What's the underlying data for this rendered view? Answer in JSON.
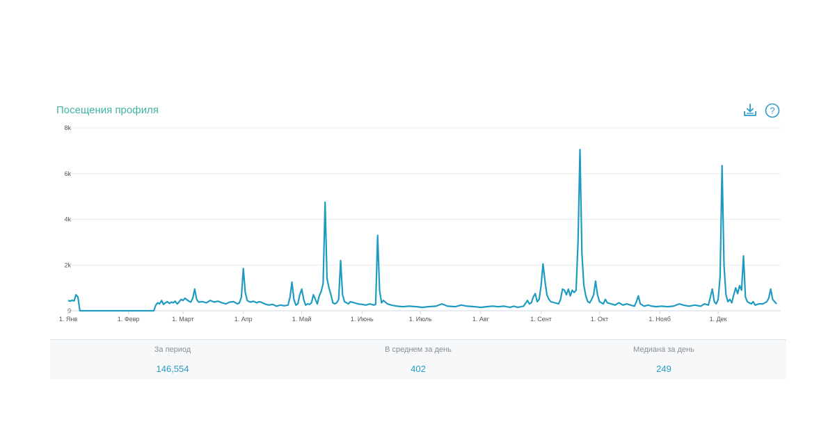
{
  "title": "Посещения профиля",
  "toolbar": {
    "download_icon": "download-icon",
    "help_icon": "help-icon"
  },
  "colors": {
    "title": "#3fb6a2",
    "line": "#1f9bc2",
    "stat_value": "#2a9bc4",
    "grid": "#e6e6e6"
  },
  "chart_data": {
    "type": "line",
    "title": "Посещения профиля",
    "xlabel": "",
    "ylabel": "",
    "ylim": [
      0,
      8000
    ],
    "y_ticks": [
      0,
      2000,
      4000,
      6000,
      8000
    ],
    "y_tick_labels": [
      "0",
      "2k",
      "4k",
      "6k",
      "8k"
    ],
    "x_tick_labels": [
      "1. Янв",
      "1. Февр",
      "1. Март",
      "1. Апр",
      "1. Май",
      "1. Июнь",
      "1. Июль",
      "1. Авг",
      "1. Сент",
      "1. Окт",
      "1. Нояб",
      "1. Дек"
    ],
    "x_tick_days": [
      1,
      32,
      60,
      91,
      121,
      152,
      182,
      213,
      244,
      274,
      305,
      335
    ],
    "grid": true,
    "legend": "none",
    "series": [
      {
        "points": [
          [
            1,
            450
          ],
          [
            2,
            420
          ],
          [
            3,
            460
          ],
          [
            4,
            430
          ],
          [
            5,
            700
          ],
          [
            6,
            600
          ],
          [
            7,
            0
          ],
          [
            8,
            0
          ],
          [
            20,
            0
          ],
          [
            40,
            0
          ],
          [
            45,
            0
          ],
          [
            46,
            250
          ],
          [
            47,
            350
          ],
          [
            48,
            300
          ],
          [
            49,
            450
          ],
          [
            50,
            280
          ],
          [
            51,
            350
          ],
          [
            52,
            400
          ],
          [
            53,
            320
          ],
          [
            54,
            380
          ],
          [
            55,
            350
          ],
          [
            56,
            420
          ],
          [
            57,
            300
          ],
          [
            58,
            380
          ],
          [
            59,
            500
          ],
          [
            60,
            450
          ],
          [
            61,
            550
          ],
          [
            62,
            480
          ],
          [
            63,
            420
          ],
          [
            64,
            380
          ],
          [
            65,
            550
          ],
          [
            66,
            950
          ],
          [
            67,
            500
          ],
          [
            68,
            380
          ],
          [
            70,
            400
          ],
          [
            72,
            350
          ],
          [
            74,
            450
          ],
          [
            76,
            380
          ],
          [
            78,
            420
          ],
          [
            80,
            350
          ],
          [
            82,
            300
          ],
          [
            84,
            380
          ],
          [
            86,
            400
          ],
          [
            88,
            300
          ],
          [
            89,
            350
          ],
          [
            90,
            600
          ],
          [
            91,
            1850
          ],
          [
            92,
            800
          ],
          [
            93,
            450
          ],
          [
            94,
            400
          ],
          [
            95,
            380
          ],
          [
            96,
            420
          ],
          [
            98,
            350
          ],
          [
            99,
            400
          ],
          [
            100,
            380
          ],
          [
            102,
            300
          ],
          [
            104,
            250
          ],
          [
            106,
            280
          ],
          [
            108,
            200
          ],
          [
            110,
            250
          ],
          [
            112,
            220
          ],
          [
            114,
            250
          ],
          [
            115,
            600
          ],
          [
            116,
            1250
          ],
          [
            117,
            500
          ],
          [
            118,
            250
          ],
          [
            119,
            300
          ],
          [
            120,
            700
          ],
          [
            121,
            950
          ],
          [
            122,
            500
          ],
          [
            123,
            250
          ],
          [
            124,
            300
          ],
          [
            125,
            280
          ],
          [
            126,
            350
          ],
          [
            127,
            700
          ],
          [
            128,
            500
          ],
          [
            129,
            300
          ],
          [
            130,
            650
          ],
          [
            131,
            850
          ],
          [
            132,
            1200
          ],
          [
            133,
            4750
          ],
          [
            134,
            1400
          ],
          [
            135,
            1000
          ],
          [
            136,
            700
          ],
          [
            137,
            350
          ],
          [
            138,
            300
          ],
          [
            139,
            350
          ],
          [
            140,
            500
          ],
          [
            141,
            2200
          ],
          [
            142,
            700
          ],
          [
            143,
            400
          ],
          [
            144,
            350
          ],
          [
            145,
            300
          ],
          [
            146,
            400
          ],
          [
            148,
            350
          ],
          [
            150,
            300
          ],
          [
            152,
            280
          ],
          [
            154,
            250
          ],
          [
            156,
            300
          ],
          [
            158,
            250
          ],
          [
            159,
            280
          ],
          [
            160,
            3300
          ],
          [
            161,
            900
          ],
          [
            162,
            350
          ],
          [
            163,
            450
          ],
          [
            165,
            300
          ],
          [
            167,
            250
          ],
          [
            170,
            200
          ],
          [
            173,
            180
          ],
          [
            176,
            200
          ],
          [
            180,
            180
          ],
          [
            183,
            150
          ],
          [
            186,
            180
          ],
          [
            190,
            200
          ],
          [
            193,
            300
          ],
          [
            196,
            200
          ],
          [
            200,
            180
          ],
          [
            203,
            250
          ],
          [
            206,
            200
          ],
          [
            210,
            180
          ],
          [
            213,
            150
          ],
          [
            216,
            180
          ],
          [
            219,
            200
          ],
          [
            222,
            180
          ],
          [
            225,
            200
          ],
          [
            228,
            150
          ],
          [
            230,
            200
          ],
          [
            232,
            150
          ],
          [
            235,
            200
          ],
          [
            237,
            450
          ],
          [
            238,
            300
          ],
          [
            239,
            350
          ],
          [
            240,
            600
          ],
          [
            241,
            750
          ],
          [
            242,
            400
          ],
          [
            243,
            500
          ],
          [
            244,
            1100
          ],
          [
            245,
            2050
          ],
          [
            246,
            1300
          ],
          [
            247,
            700
          ],
          [
            248,
            500
          ],
          [
            249,
            400
          ],
          [
            251,
            350
          ],
          [
            253,
            300
          ],
          [
            254,
            500
          ],
          [
            255,
            950
          ],
          [
            256,
            900
          ],
          [
            257,
            700
          ],
          [
            258,
            950
          ],
          [
            259,
            650
          ],
          [
            260,
            900
          ],
          [
            261,
            800
          ],
          [
            262,
            900
          ],
          [
            263,
            3000
          ],
          [
            264,
            7050
          ],
          [
            265,
            2500
          ],
          [
            266,
            1100
          ],
          [
            267,
            650
          ],
          [
            268,
            400
          ],
          [
            269,
            350
          ],
          [
            270,
            500
          ],
          [
            271,
            700
          ],
          [
            272,
            1300
          ],
          [
            273,
            700
          ],
          [
            274,
            400
          ],
          [
            275,
            350
          ],
          [
            276,
            300
          ],
          [
            277,
            500
          ],
          [
            278,
            350
          ],
          [
            280,
            300
          ],
          [
            282,
            250
          ],
          [
            284,
            350
          ],
          [
            286,
            250
          ],
          [
            288,
            300
          ],
          [
            290,
            250
          ],
          [
            292,
            200
          ],
          [
            293,
            400
          ],
          [
            294,
            650
          ],
          [
            295,
            300
          ],
          [
            297,
            200
          ],
          [
            299,
            250
          ],
          [
            301,
            200
          ],
          [
            303,
            180
          ],
          [
            306,
            200
          ],
          [
            309,
            180
          ],
          [
            312,
            200
          ],
          [
            315,
            300
          ],
          [
            317,
            250
          ],
          [
            320,
            200
          ],
          [
            323,
            250
          ],
          [
            326,
            200
          ],
          [
            328,
            300
          ],
          [
            330,
            250
          ],
          [
            331,
            600
          ],
          [
            332,
            950
          ],
          [
            333,
            400
          ],
          [
            334,
            300
          ],
          [
            335,
            500
          ],
          [
            336,
            1500
          ],
          [
            337,
            6350
          ],
          [
            338,
            2000
          ],
          [
            339,
            700
          ],
          [
            340,
            400
          ],
          [
            341,
            500
          ],
          [
            342,
            350
          ],
          [
            343,
            700
          ],
          [
            344,
            1000
          ],
          [
            345,
            750
          ],
          [
            346,
            1100
          ],
          [
            347,
            900
          ],
          [
            348,
            2400
          ],
          [
            349,
            600
          ],
          [
            350,
            400
          ],
          [
            351,
            350
          ],
          [
            352,
            300
          ],
          [
            353,
            400
          ],
          [
            354,
            250
          ],
          [
            356,
            300
          ],
          [
            358,
            300
          ],
          [
            360,
            400
          ],
          [
            361,
            550
          ],
          [
            362,
            950
          ],
          [
            363,
            500
          ],
          [
            364,
            400
          ],
          [
            365,
            300
          ]
        ]
      }
    ]
  },
  "stats": [
    {
      "label": "За период",
      "value": "146,554"
    },
    {
      "label": "В среднем за день",
      "value": "402"
    },
    {
      "label": "Медиана за день",
      "value": "249"
    }
  ]
}
